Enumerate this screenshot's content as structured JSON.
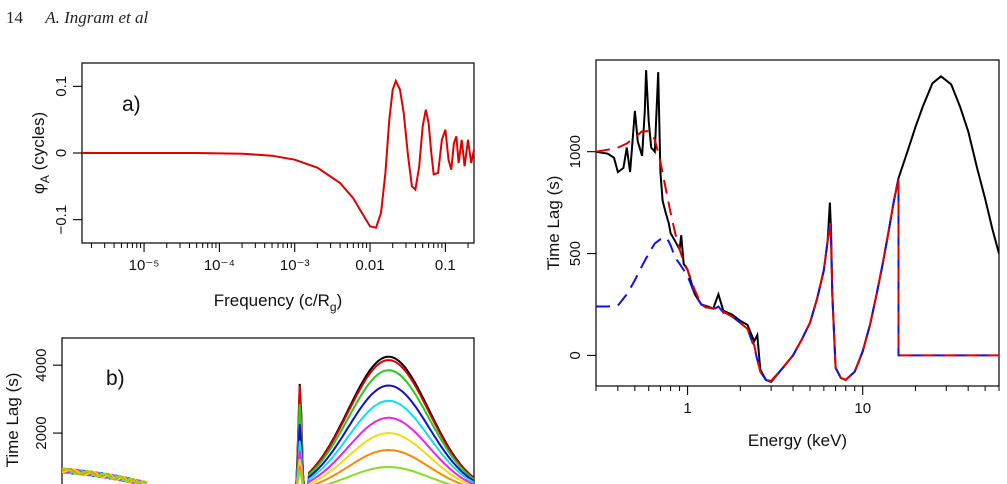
{
  "header": {
    "page_number": "14",
    "authors": "A. Ingram et al"
  },
  "chart_data": [
    {
      "type": "line",
      "panel_label": "a)",
      "xlabel": "Frequency (c/R",
      "xlabel_sub": "g",
      "xlabel_close": ")",
      "ylabel": "φ",
      "ylabel_sub": "A",
      "ylabel_rest": " (cycles)",
      "xscale": "log",
      "xlim": [
        1.5e-06,
        0.24
      ],
      "ylim": [
        -0.135,
        0.135
      ],
      "xtick_labels": [
        "10⁻⁵",
        "10⁻⁴",
        "10⁻³",
        "0.01",
        "0.1"
      ],
      "xticks": [
        1e-05,
        0.0001,
        0.001,
        0.01,
        0.1
      ],
      "ytick_labels": [
        "−0.1",
        "0",
        "0.1"
      ],
      "yticks": [
        -0.1,
        0,
        0.1
      ],
      "series": [
        {
          "color": "#e00000",
          "x": [
            1.5e-06,
            5e-05,
            0.0002,
            0.0005,
            0.001,
            0.002,
            0.004,
            0.006,
            0.008,
            0.01,
            0.012,
            0.014,
            0.016,
            0.018,
            0.02,
            0.022,
            0.025,
            0.028,
            0.032,
            0.036,
            0.04,
            0.045,
            0.05,
            0.055,
            0.06,
            0.065,
            0.07,
            0.08,
            0.09,
            0.1,
            0.11,
            0.12,
            0.13,
            0.14,
            0.15,
            0.165,
            0.18,
            0.2,
            0.22,
            0.24
          ],
          "y": [
            0.0,
            0.0,
            -0.001,
            -0.004,
            -0.01,
            -0.022,
            -0.045,
            -0.068,
            -0.092,
            -0.11,
            -0.112,
            -0.09,
            -0.03,
            0.05,
            0.095,
            0.108,
            0.095,
            0.06,
            -0.005,
            -0.05,
            -0.055,
            -0.02,
            0.04,
            0.065,
            0.045,
            0.0,
            -0.032,
            -0.03,
            0.02,
            0.035,
            -0.01,
            -0.025,
            0.015,
            0.025,
            -0.015,
            0.02,
            -0.02,
            0.02,
            -0.015,
            0.005
          ]
        }
      ]
    },
    {
      "type": "line",
      "panel_label": "b)",
      "ylabel": "Time Lag (s)",
      "xscale": "log",
      "xlim": [
        0.3,
        60
      ],
      "ylim": [
        500,
        4800
      ],
      "ytick_labels": [
        "2000",
        "4000"
      ],
      "yticks": [
        2000,
        4000
      ],
      "peak_energy": 20,
      "line_energy": 6.4,
      "series": [
        {
          "color": "#000000",
          "peak": 4250,
          "line": 3500
        },
        {
          "color": "#e00000",
          "peak": 4150,
          "line": 3450
        },
        {
          "color": "#22cc22",
          "peak": 3850,
          "line": 2900
        },
        {
          "color": "#1010cc",
          "peak": 3400,
          "line": 2300
        },
        {
          "color": "#11ddee",
          "peak": 2950,
          "line": 1800
        },
        {
          "color": "#ee22ee",
          "peak": 2450,
          "line": 1500
        },
        {
          "color": "#eedd11",
          "peak": 2000,
          "line": 1250
        },
        {
          "color": "#ff8800",
          "peak": 1500,
          "line": 1050
        },
        {
          "color": "#88dd22",
          "peak": 1000,
          "line": 900
        }
      ]
    },
    {
      "type": "line",
      "xlabel": "Energy (keV)",
      "ylabel": "Time Lag (s)",
      "xscale": "log",
      "xlim": [
        0.3,
        60
      ],
      "ylim": [
        -150,
        1450
      ],
      "xtick_labels": [
        "1",
        "10"
      ],
      "xticks": [
        1,
        10
      ],
      "ytick_labels": [
        "0",
        "500",
        "1000"
      ],
      "yticks": [
        0,
        500,
        1000
      ],
      "series": [
        {
          "color": "#000000",
          "style": "solid",
          "x": [
            0.3,
            0.35,
            0.38,
            0.4,
            0.43,
            0.45,
            0.47,
            0.5,
            0.52,
            0.55,
            0.57,
            0.58,
            0.6,
            0.62,
            0.65,
            0.68,
            0.7,
            0.72,
            0.75,
            0.78,
            0.8,
            0.85,
            0.9,
            0.92,
            0.95,
            1.0,
            1.1,
            1.2,
            1.3,
            1.4,
            1.5,
            1.6,
            1.8,
            2.0,
            2.2,
            2.4,
            2.5,
            2.6,
            2.8,
            3.0,
            3.5,
            4.0,
            4.5,
            5.0,
            5.5,
            6.0,
            6.3,
            6.5,
            6.6,
            6.7,
            7.0,
            7.5,
            8.0,
            9.0,
            10.0,
            11.0,
            12.0,
            13.0,
            14.0,
            15.0,
            16.0,
            18.0,
            20.0,
            22.0,
            25.0,
            28.0,
            32.0,
            36.0,
            40.0,
            45.0,
            50.0,
            55.0,
            60.0
          ],
          "y": [
            1000,
            990,
            970,
            900,
            920,
            1020,
            900,
            1200,
            1050,
            980,
            1200,
            1400,
            1150,
            1020,
            1000,
            1390,
            900,
            760,
            700,
            650,
            600,
            560,
            520,
            590,
            450,
            420,
            300,
            250,
            240,
            230,
            300,
            220,
            200,
            170,
            150,
            70,
            100,
            -70,
            -120,
            -130,
            -60,
            0,
            80,
            160,
            280,
            420,
            560,
            750,
            600,
            300,
            -60,
            -110,
            -120,
            -80,
            20,
            150,
            300,
            450,
            600,
            750,
            870,
            1000,
            1120,
            1220,
            1335,
            1370,
            1330,
            1220,
            1100,
            920,
            770,
            620,
            500
          ]
        },
        {
          "color": "#1111ee",
          "style": "dashed",
          "x": [
            0.3,
            0.35,
            0.4,
            0.45,
            0.5,
            0.55,
            0.6,
            0.65,
            0.7,
            0.75,
            0.78,
            0.8,
            0.85,
            0.9,
            0.95,
            1.0,
            1.1,
            1.2,
            1.3,
            1.4,
            1.5,
            1.6,
            1.8,
            2.0,
            2.2,
            2.4,
            2.6,
            2.8,
            3.0,
            3.5,
            4.0,
            4.5,
            5.0,
            5.5,
            6.0,
            6.3,
            6.5,
            6.6,
            6.7,
            7.0,
            7.5,
            8.0,
            9.0,
            10.0,
            11.0,
            12.0,
            13.0,
            14.0,
            15.0,
            16.0,
            16.01,
            20.0,
            30.0,
            40.0,
            50.0,
            60.0
          ],
          "y": [
            240,
            240,
            245,
            300,
            370,
            440,
            500,
            550,
            570,
            580,
            560,
            540,
            480,
            450,
            420,
            390,
            300,
            250,
            230,
            225,
            240,
            210,
            190,
            160,
            130,
            40,
            -80,
            -120,
            -130,
            -60,
            0,
            80,
            160,
            280,
            420,
            560,
            650,
            550,
            300,
            -60,
            -110,
            -120,
            -80,
            20,
            150,
            300,
            450,
            600,
            750,
            870,
            0,
            0,
            0,
            0,
            0,
            0
          ]
        },
        {
          "color": "#e00000",
          "style": "dashed",
          "x": [
            0.3,
            0.35,
            0.4,
            0.45,
            0.5,
            0.55,
            0.6,
            0.65,
            0.7,
            0.75,
            0.8,
            0.85,
            0.9,
            0.95,
            1.0,
            1.1,
            1.2,
            1.3,
            1.4,
            1.5,
            1.6,
            1.8,
            2.0,
            2.2,
            2.4,
            2.6,
            2.8,
            3.0,
            3.5,
            4.0,
            4.5,
            5.0,
            5.5,
            6.0,
            6.3,
            6.5,
            6.6,
            6.7,
            7.0,
            7.5,
            8.0,
            9.0,
            10.0,
            11.0,
            12.0,
            13.0,
            14.0,
            15.0,
            16.0,
            16.01,
            20.0,
            30.0,
            40.0,
            50.0,
            60.0
          ],
          "y": [
            1000,
            1010,
            1020,
            1040,
            1070,
            1100,
            1100,
            1060,
            950,
            820,
            700,
            600,
            520,
            460,
            420,
            320,
            250,
            235,
            230,
            240,
            215,
            190,
            160,
            130,
            50,
            -80,
            -120,
            -125,
            -60,
            0,
            80,
            160,
            280,
            420,
            560,
            650,
            550,
            300,
            -60,
            -110,
            -120,
            -80,
            20,
            150,
            300,
            450,
            600,
            750,
            870,
            0,
            0,
            0,
            0,
            0,
            0
          ]
        }
      ]
    }
  ]
}
